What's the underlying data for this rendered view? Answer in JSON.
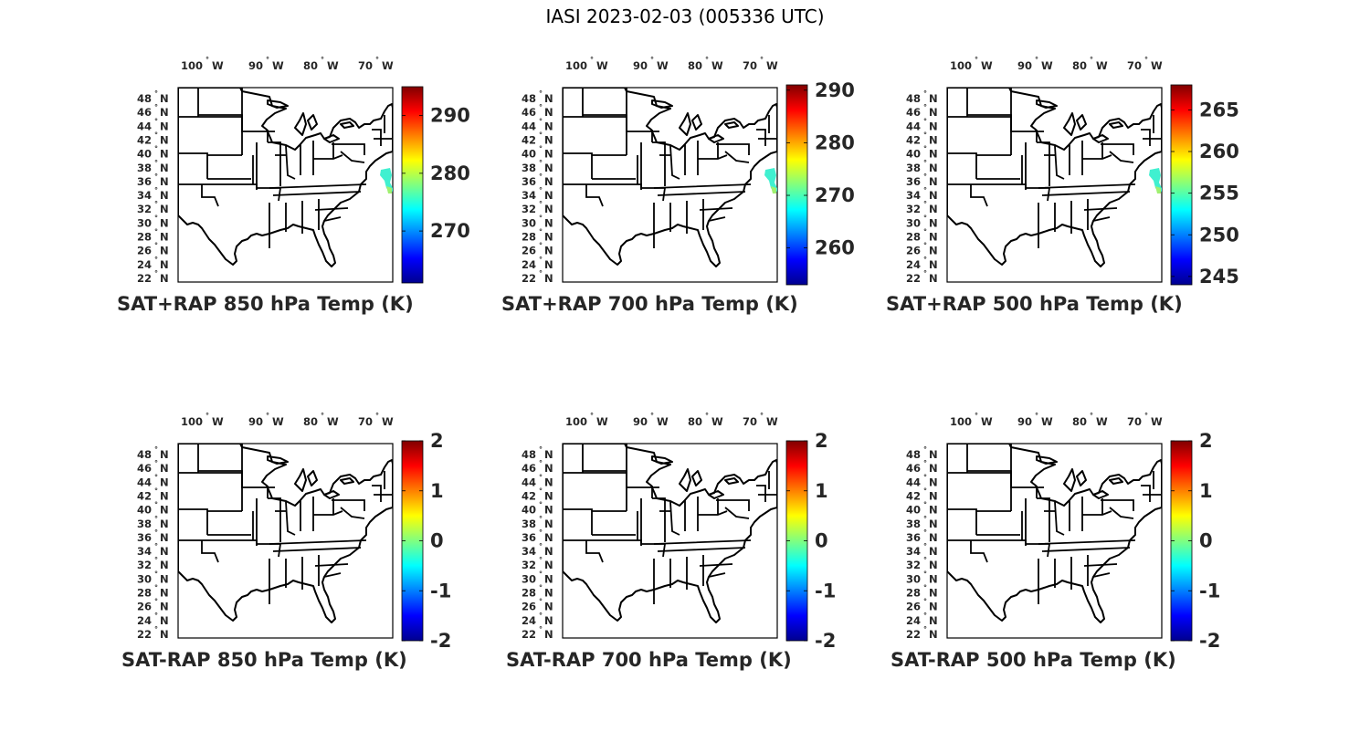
{
  "figure": {
    "title": "IASI 2023-02-03 (005336 UTC)"
  },
  "colormap": [
    "#00008f",
    "#0000ff",
    "#0080ff",
    "#00ffff",
    "#80ff80",
    "#ffff00",
    "#ff8000",
    "#ff0000",
    "#800000"
  ],
  "lon_ticks": [
    {
      "num": "100",
      "dir": "W"
    },
    {
      "num": "90",
      "dir": "W"
    },
    {
      "num": "80",
      "dir": "W"
    },
    {
      "num": "70",
      "dir": "W"
    }
  ],
  "lat_ticks": [
    {
      "num": "48",
      "dir": "N"
    },
    {
      "num": "46",
      "dir": "N"
    },
    {
      "num": "44",
      "dir": "N"
    },
    {
      "num": "42",
      "dir": "N"
    },
    {
      "num": "40",
      "dir": "N"
    },
    {
      "num": "38",
      "dir": "N"
    },
    {
      "num": "36",
      "dir": "N"
    },
    {
      "num": "34",
      "dir": "N"
    },
    {
      "num": "32",
      "dir": "N"
    },
    {
      "num": "30",
      "dir": "N"
    },
    {
      "num": "28",
      "dir": "N"
    },
    {
      "num": "26",
      "dir": "N"
    },
    {
      "num": "24",
      "dir": "N"
    },
    {
      "num": "22",
      "dir": "N"
    }
  ],
  "panels": [
    {
      "title": "SAT+RAP 850 hPa Temp (K)",
      "cbar_min": 261,
      "cbar_max": 295,
      "cbar_ticks": [
        "290",
        "280",
        "270"
      ],
      "cbar_values": [
        290,
        280,
        270
      ],
      "has_swath": true,
      "swath_color": "#40f0d0"
    },
    {
      "title": "SAT+RAP 700 hPa Temp (K)",
      "cbar_min": 253,
      "cbar_max": 291,
      "cbar_ticks": [
        "290",
        "280",
        "270",
        "260"
      ],
      "cbar_values": [
        290,
        280,
        270,
        260
      ],
      "has_swath": true,
      "swath_color": "#40f0d0"
    },
    {
      "title": "SAT+RAP 500 hPa Temp (K)",
      "cbar_min": 244,
      "cbar_max": 268,
      "cbar_ticks": [
        "265",
        "260",
        "255",
        "250",
        "245"
      ],
      "cbar_values": [
        265,
        260,
        255,
        250,
        245
      ],
      "has_swath": true,
      "swath_color": "#40f0d0"
    },
    {
      "title": "SAT-RAP 850 hPa Temp (K)",
      "cbar_min": -2,
      "cbar_max": 2,
      "cbar_ticks": [
        "2",
        "1",
        "0",
        "-1",
        "-2"
      ],
      "cbar_values": [
        2,
        1,
        0,
        -1,
        -2
      ],
      "has_swath": false
    },
    {
      "title": "SAT-RAP 700 hPa Temp (K)",
      "cbar_min": -2,
      "cbar_max": 2,
      "cbar_ticks": [
        "2",
        "1",
        "0",
        "-1",
        "-2"
      ],
      "cbar_values": [
        2,
        1,
        0,
        -1,
        -2
      ],
      "has_swath": false
    },
    {
      "title": "SAT-RAP 500 hPa Temp (K)",
      "cbar_min": -2,
      "cbar_max": 2,
      "cbar_ticks": [
        "2",
        "1",
        "0",
        "-1",
        "-2"
      ],
      "cbar_values": [
        2,
        1,
        0,
        -1,
        -2
      ],
      "has_swath": false
    }
  ]
}
